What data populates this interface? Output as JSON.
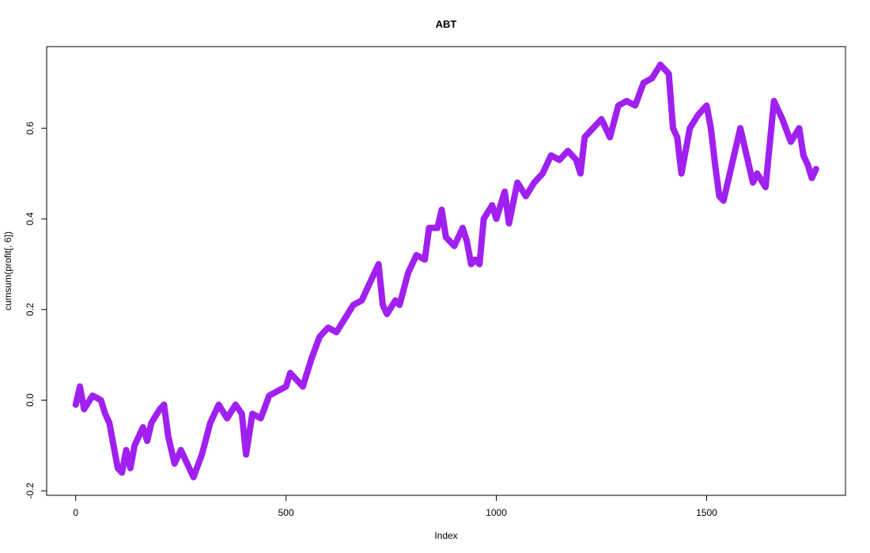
{
  "chart_data": {
    "type": "line",
    "title": "ABT",
    "x_label": "Index",
    "y_label": "cumsum(profit[, 6])",
    "x": [
      0,
      10,
      20,
      40,
      60,
      70,
      80,
      90,
      100,
      110,
      120,
      130,
      140,
      160,
      170,
      180,
      200,
      210,
      220,
      235,
      250,
      265,
      280,
      300,
      320,
      340,
      360,
      380,
      395,
      405,
      420,
      440,
      460,
      480,
      500,
      510,
      530,
      540,
      560,
      580,
      600,
      620,
      640,
      660,
      680,
      700,
      720,
      730,
      740,
      760,
      770,
      790,
      810,
      830,
      840,
      860,
      870,
      880,
      900,
      920,
      930,
      940,
      950,
      960,
      970,
      990,
      1000,
      1020,
      1030,
      1050,
      1070,
      1090,
      1110,
      1130,
      1150,
      1170,
      1190,
      1200,
      1210,
      1230,
      1250,
      1270,
      1290,
      1310,
      1330,
      1350,
      1370,
      1390,
      1400,
      1410,
      1420,
      1430,
      1440,
      1460,
      1480,
      1500,
      1510,
      1520,
      1530,
      1540,
      1560,
      1580,
      1600,
      1610,
      1620,
      1640,
      1660,
      1680,
      1700,
      1720,
      1730,
      1740,
      1750,
      1760
    ],
    "series": [
      {
        "name": "cumsum(profit[, 6])",
        "color": "#a020f0",
        "values": [
          -0.01,
          0.03,
          -0.02,
          0.01,
          0.0,
          -0.03,
          -0.05,
          -0.1,
          -0.15,
          -0.16,
          -0.11,
          -0.15,
          -0.1,
          -0.06,
          -0.09,
          -0.05,
          -0.02,
          -0.01,
          -0.08,
          -0.14,
          -0.11,
          -0.14,
          -0.17,
          -0.12,
          -0.05,
          -0.01,
          -0.04,
          -0.01,
          -0.03,
          -0.12,
          -0.03,
          -0.04,
          0.01,
          0.02,
          0.03,
          0.06,
          0.04,
          0.03,
          0.09,
          0.14,
          0.16,
          0.15,
          0.18,
          0.21,
          0.22,
          0.26,
          0.3,
          0.21,
          0.19,
          0.22,
          0.21,
          0.28,
          0.32,
          0.31,
          0.38,
          0.38,
          0.42,
          0.36,
          0.34,
          0.38,
          0.35,
          0.3,
          0.31,
          0.3,
          0.4,
          0.43,
          0.4,
          0.46,
          0.39,
          0.48,
          0.45,
          0.48,
          0.5,
          0.54,
          0.53,
          0.55,
          0.53,
          0.5,
          0.58,
          0.6,
          0.62,
          0.58,
          0.65,
          0.66,
          0.65,
          0.7,
          0.71,
          0.74,
          0.73,
          0.72,
          0.6,
          0.58,
          0.5,
          0.6,
          0.63,
          0.65,
          0.6,
          0.52,
          0.45,
          0.44,
          0.52,
          0.6,
          0.52,
          0.48,
          0.5,
          0.47,
          0.66,
          0.62,
          0.57,
          0.6,
          0.54,
          0.52,
          0.49,
          0.51
        ]
      }
    ],
    "xlim": [
      -69,
      1830
    ],
    "ylim": [
      -0.21,
      0.78
    ],
    "xticks": [
      0,
      500,
      1000,
      1500
    ],
    "yticks": [
      -0.2,
      {
        "value": 0,
        "label": "0.0"
      },
      0.2,
      0.4,
      0.6
    ],
    "line_width": 8
  }
}
